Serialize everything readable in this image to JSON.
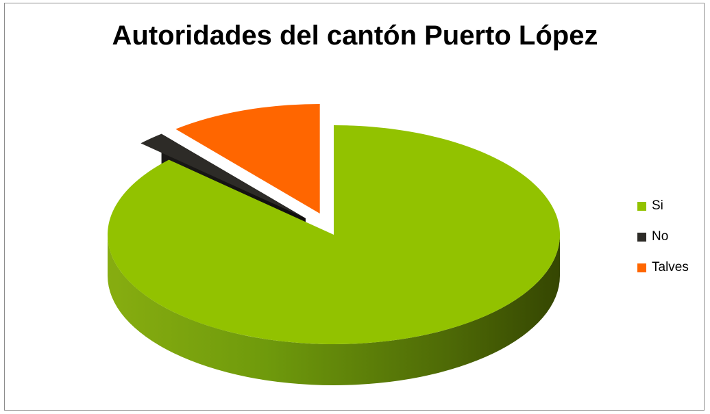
{
  "chart_data": {
    "type": "pie",
    "title": "Autoridades del cantón Puerto López",
    "categories": [
      "Si",
      "No",
      "Talves"
    ],
    "values": [
      87,
      2,
      11
    ],
    "colors": [
      "#92c200",
      "#2d2b27",
      "#ff6600"
    ],
    "legend_position": "right",
    "style": "3d-exploded"
  }
}
